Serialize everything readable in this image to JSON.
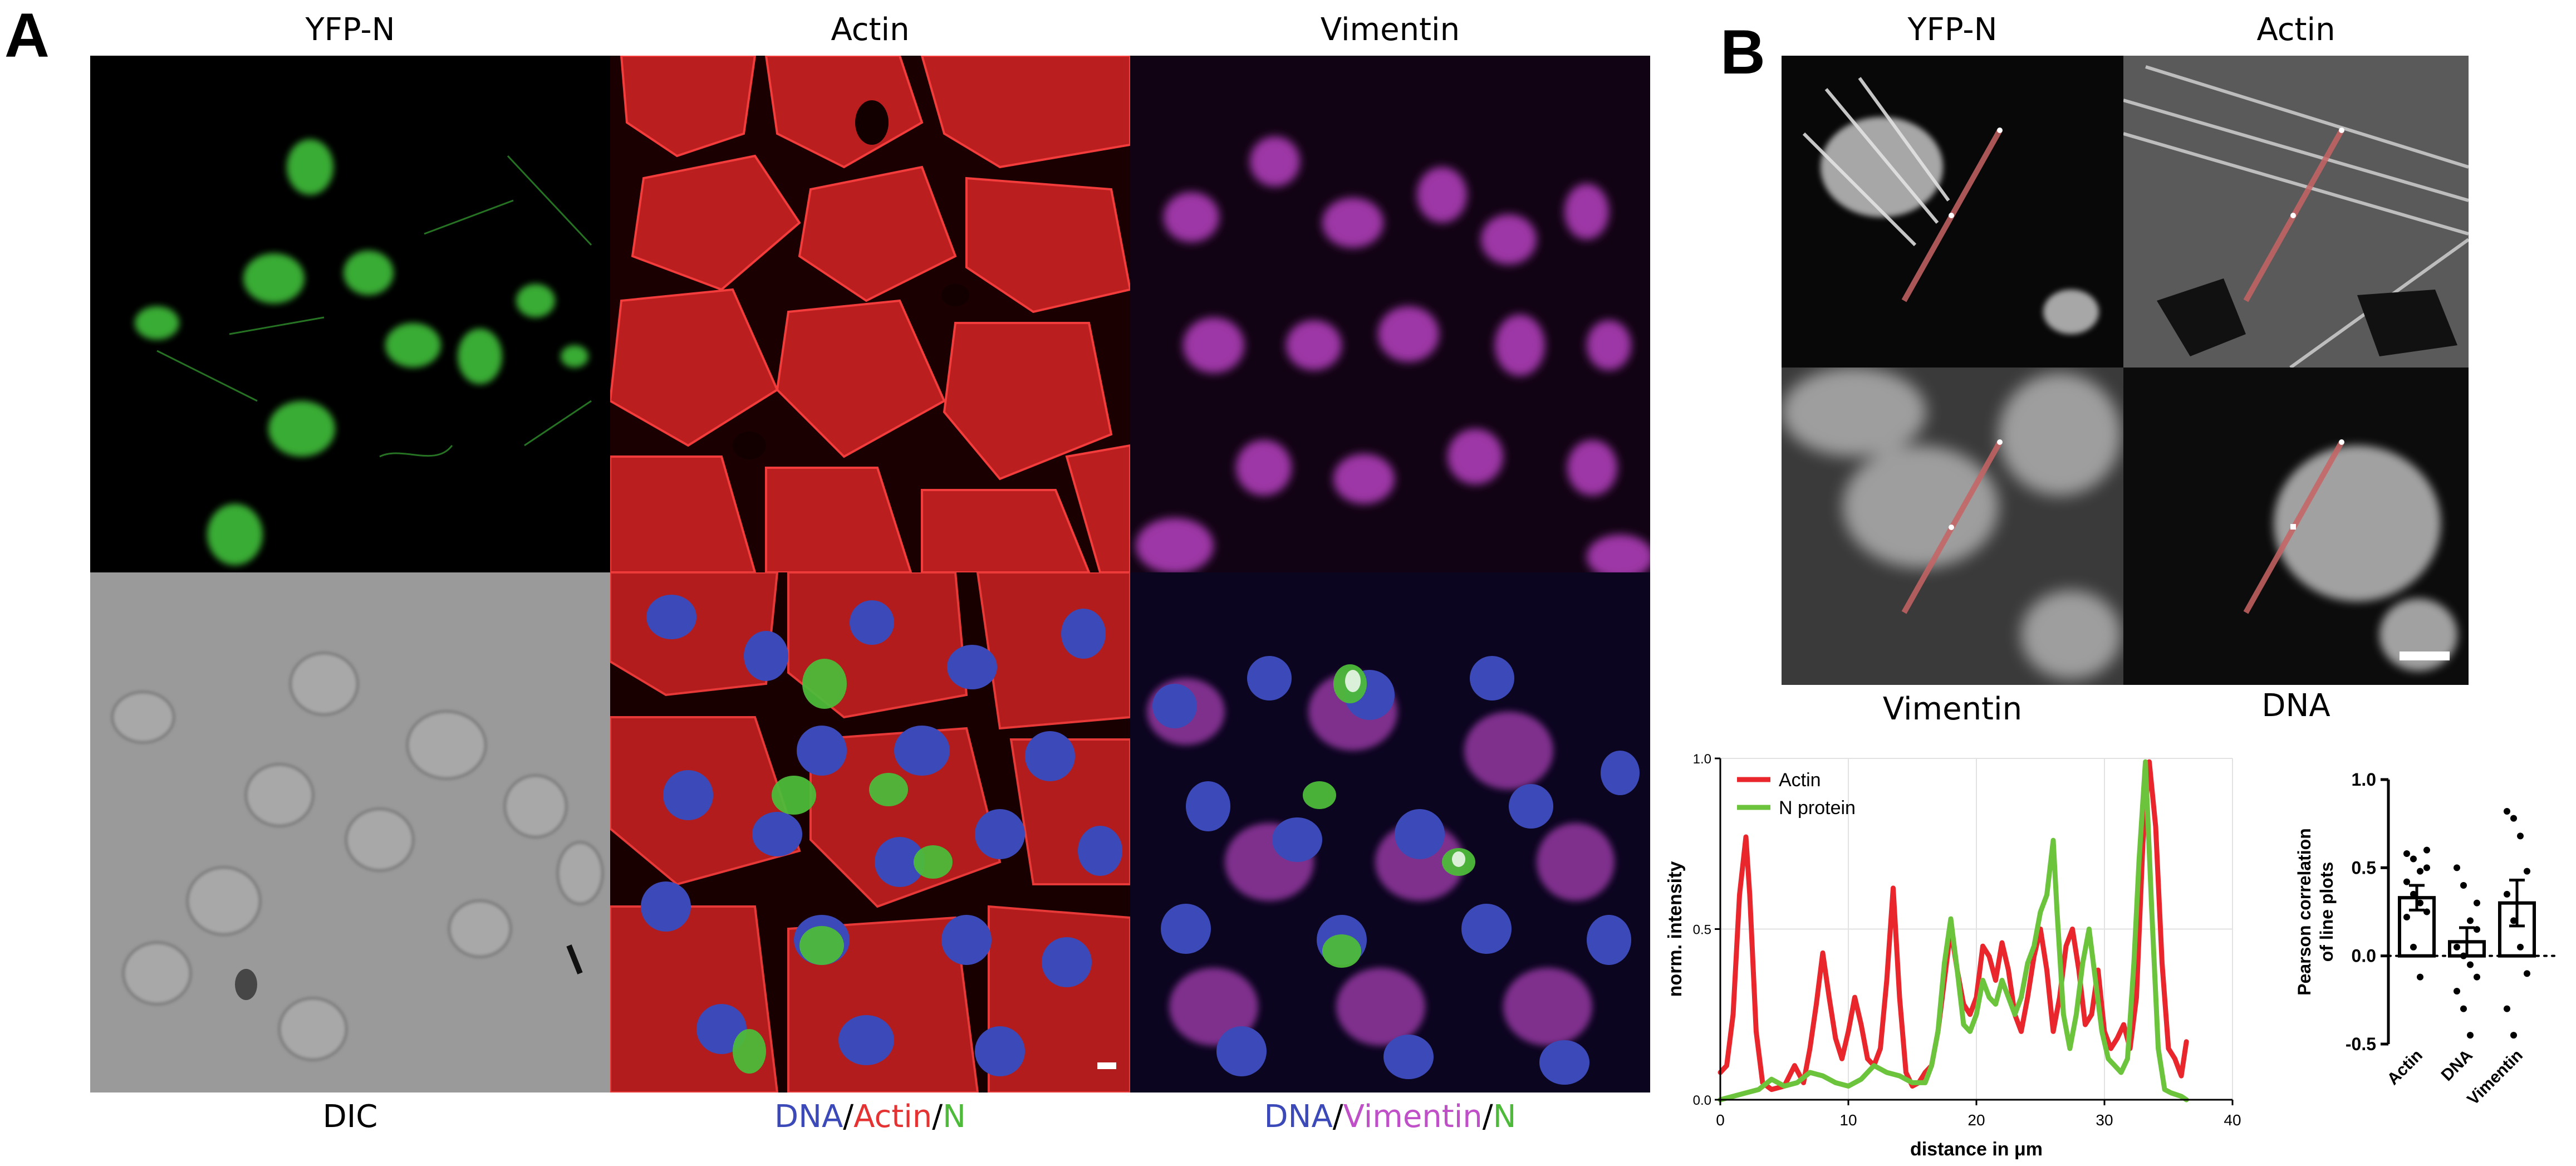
{
  "panel_a": {
    "letter": "A",
    "col_titles": [
      "YFP-N",
      "Actin",
      "Vimentin"
    ],
    "bottom_labels": {
      "dic": "DIC",
      "merge1": {
        "dna": "DNA",
        "sep1": "/",
        "actin": "Actin",
        "sep2": "/",
        "n": "N"
      },
      "merge2": {
        "dna": "DNA",
        "sep1": "/",
        "vimentin": "Vimentin",
        "sep2": "/",
        "n": "N"
      }
    }
  },
  "panel_b": {
    "letter": "B",
    "col_titles": [
      "YFP-N",
      "Actin"
    ],
    "bottom_labels": [
      "Vimentin",
      "DNA"
    ]
  },
  "colors": {
    "dna": "#3b4ab8",
    "actin": "#e53232",
    "n": "#4dba3a",
    "vimentin": "#c050c8",
    "line_actin": "#e8262c",
    "line_n": "#6cc43c"
  },
  "chart_data": [
    {
      "type": "line",
      "xlabel": "distance in μm",
      "ylabel": "norm. intensity",
      "xlim": [
        0,
        40
      ],
      "ylim": [
        0,
        1.0
      ],
      "xticks": [
        "0",
        "10",
        "20",
        "30",
        "40"
      ],
      "yticks": [
        "0.0",
        "0.5",
        "1.0"
      ],
      "legend": "top-left",
      "series": [
        {
          "name": "Actin",
          "color": "#e8262c",
          "x": [
            0,
            0.5,
            1,
            1.5,
            2,
            2.3,
            2.8,
            3.3,
            4,
            5,
            5.8,
            6.5,
            7,
            7.5,
            8,
            8.5,
            9,
            9.5,
            10,
            10.5,
            11,
            11.5,
            12,
            12.5,
            13,
            13.5,
            14,
            14.5,
            15,
            15.5,
            16,
            16.5,
            17,
            17.5,
            18,
            18.5,
            19,
            19.5,
            20,
            20.5,
            21,
            21.5,
            22,
            22.5,
            23,
            23.5,
            24,
            24.5,
            25,
            25.5,
            26,
            26.5,
            27,
            27.5,
            28,
            28.5,
            29,
            29.5,
            30,
            30.5,
            31,
            31.5,
            32,
            32.5,
            33,
            33.5,
            34,
            34.5,
            35,
            35.5,
            36,
            36.4
          ],
          "y": [
            0.08,
            0.1,
            0.25,
            0.6,
            0.77,
            0.6,
            0.2,
            0.05,
            0.03,
            0.04,
            0.1,
            0.05,
            0.15,
            0.28,
            0.43,
            0.3,
            0.18,
            0.12,
            0.2,
            0.3,
            0.22,
            0.12,
            0.1,
            0.15,
            0.35,
            0.62,
            0.3,
            0.08,
            0.04,
            0.05,
            0.08,
            0.1,
            0.2,
            0.35,
            0.5,
            0.38,
            0.28,
            0.25,
            0.3,
            0.45,
            0.42,
            0.35,
            0.46,
            0.38,
            0.25,
            0.2,
            0.3,
            0.42,
            0.5,
            0.38,
            0.2,
            0.3,
            0.45,
            0.5,
            0.38,
            0.22,
            0.25,
            0.38,
            0.2,
            0.15,
            0.18,
            0.22,
            0.15,
            0.3,
            0.75,
            0.99,
            0.8,
            0.4,
            0.15,
            0.12,
            0.07,
            0.17
          ]
        },
        {
          "name": "N protein",
          "color": "#6cc43c",
          "x": [
            0,
            1,
            2,
            3,
            4,
            5,
            6,
            7,
            8,
            9,
            10,
            11,
            12,
            13,
            14,
            15,
            16,
            16.5,
            17,
            17.5,
            18,
            18.5,
            19,
            19.5,
            20,
            20.5,
            21,
            21.5,
            22,
            22.5,
            23,
            23.5,
            24,
            24.5,
            25,
            25.5,
            26,
            26.3,
            26.8,
            27.3,
            27.8,
            28.3,
            28.8,
            29.3,
            29.8,
            30.3,
            30.8,
            31.3,
            31.8,
            32.3,
            32.7,
            33.2,
            33.7,
            34.2,
            34.7,
            35.2,
            36,
            36.4
          ],
          "y": [
            0.0,
            0.01,
            0.02,
            0.03,
            0.06,
            0.04,
            0.05,
            0.08,
            0.07,
            0.05,
            0.04,
            0.06,
            0.1,
            0.08,
            0.07,
            0.05,
            0.05,
            0.1,
            0.2,
            0.4,
            0.53,
            0.38,
            0.22,
            0.2,
            0.25,
            0.35,
            0.3,
            0.28,
            0.35,
            0.3,
            0.25,
            0.3,
            0.4,
            0.45,
            0.55,
            0.6,
            0.76,
            0.55,
            0.25,
            0.15,
            0.25,
            0.4,
            0.5,
            0.35,
            0.2,
            0.12,
            0.1,
            0.08,
            0.12,
            0.4,
            0.7,
            0.99,
            0.55,
            0.15,
            0.03,
            0.02,
            0.01,
            0.0
          ]
        }
      ]
    },
    {
      "type": "bar",
      "ylabel": "Pearson correlation of line plots",
      "ylim": [
        -0.5,
        1.0
      ],
      "yticks": [
        "-0.5",
        "0.0",
        "0.5",
        "1.0"
      ],
      "categories": [
        "Actin",
        "DNA",
        "Vimentin"
      ],
      "values": [
        0.33,
        0.08,
        0.3
      ],
      "errors": [
        0.07,
        0.08,
        0.13
      ],
      "points": [
        [
          0.58,
          0.55,
          0.48,
          0.5,
          0.42,
          0.35,
          0.3,
          0.25,
          0.22,
          0.05,
          -0.12,
          0.6
        ],
        [
          0.5,
          0.4,
          0.2,
          0.15,
          0.05,
          0.0,
          -0.05,
          -0.12,
          -0.2,
          -0.3,
          -0.45,
          0.3
        ],
        [
          0.82,
          0.78,
          0.68,
          0.48,
          0.35,
          0.2,
          0.05,
          -0.1,
          -0.3,
          -0.45
        ]
      ],
      "reference_line": 0.0
    }
  ]
}
